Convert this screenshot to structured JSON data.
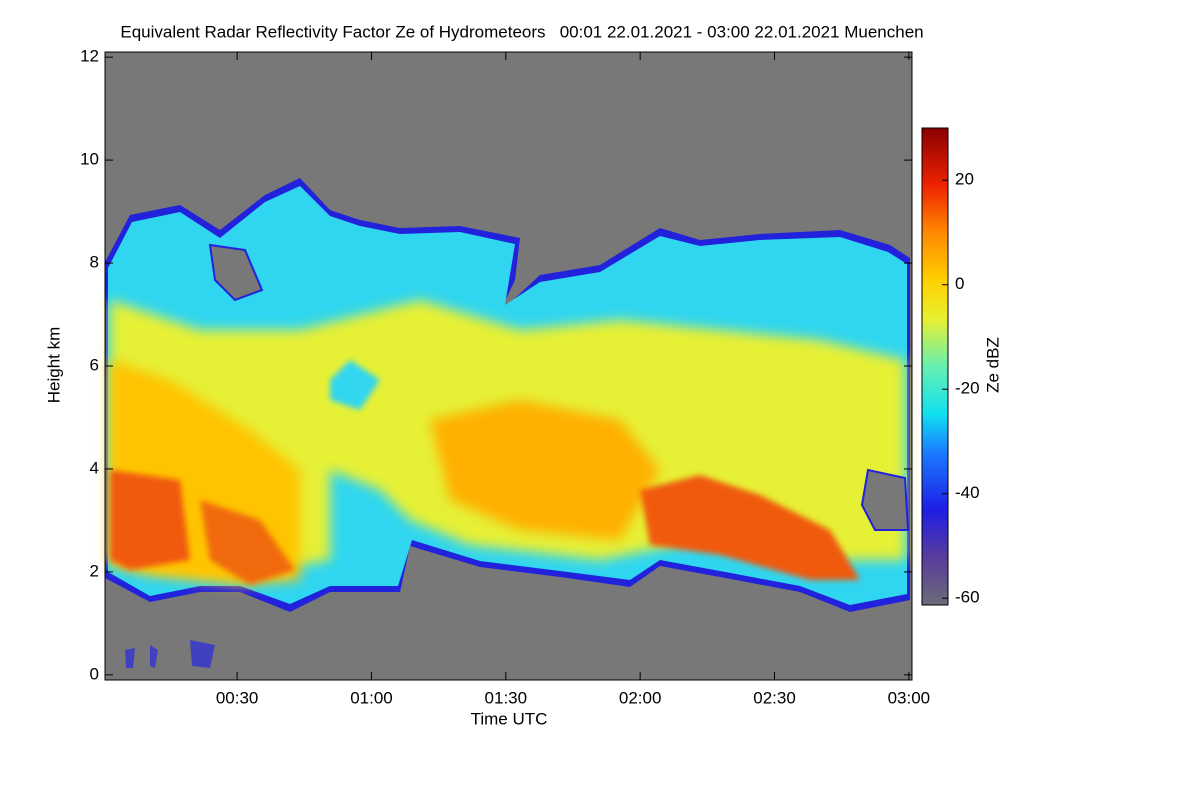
{
  "chart_data": {
    "type": "heatmap",
    "title": "Equivalent Radar Reflectivity Factor Ze of Hydrometeors   00:01 22.01.2021 - 03:00 22.01.2021 Muenchen",
    "x_label": "Time UTC",
    "y_label": "Height km",
    "xlim": [
      0.5,
      180.7
    ],
    "xticks": [
      {
        "value": 30,
        "label": "00:30"
      },
      {
        "value": 60,
        "label": "01:00"
      },
      {
        "value": 90,
        "label": "01:30"
      },
      {
        "value": 120,
        "label": "02:00"
      },
      {
        "value": 150,
        "label": "02:30"
      },
      {
        "value": 180,
        "label": "03:00"
      }
    ],
    "ylim": [
      -0.1,
      12.1
    ],
    "yticks": [
      0,
      2,
      4,
      6,
      8,
      10,
      12
    ],
    "colorbar": {
      "label": "Ze dBZ",
      "lim": [
        -61.3,
        30
      ],
      "ticks": [
        20,
        0,
        -20,
        -40,
        -60
      ]
    }
  }
}
